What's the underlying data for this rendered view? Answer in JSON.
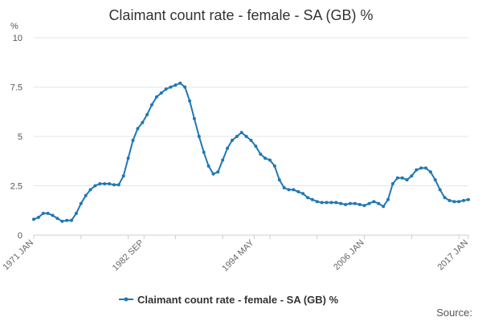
{
  "chart_data": {
    "type": "line",
    "title": "Claimant count rate - female - SA (GB) %",
    "unit_label": "%",
    "ylim": [
      0,
      10
    ],
    "y_ticks": [
      "0",
      "2.5",
      "5",
      "7.5",
      "10"
    ],
    "x_ticks": [
      "1971 JAN",
      "1982 SEP",
      "1994 MAY",
      "2006 JAN",
      "2017 JAN"
    ],
    "grid": true,
    "legend_position": "bottom",
    "source_label": "Source:",
    "colors": {
      "series": "#1f77b4",
      "grid": "#e6e6e6",
      "axis": "#cccccc"
    },
    "series": [
      {
        "name": "Claimant count rate - female - SA (GB) %",
        "points": [
          [
            "1971-01",
            0.8
          ],
          [
            "1971-07",
            0.9
          ],
          [
            "1972-01",
            1.1
          ],
          [
            "1972-07",
            1.1
          ],
          [
            "1973-01",
            1.0
          ],
          [
            "1973-07",
            0.85
          ],
          [
            "1974-01",
            0.7
          ],
          [
            "1974-07",
            0.75
          ],
          [
            "1975-01",
            0.75
          ],
          [
            "1975-07",
            1.1
          ],
          [
            "1976-01",
            1.6
          ],
          [
            "1976-07",
            2.0
          ],
          [
            "1977-01",
            2.3
          ],
          [
            "1977-07",
            2.5
          ],
          [
            "1978-01",
            2.6
          ],
          [
            "1978-07",
            2.6
          ],
          [
            "1979-01",
            2.6
          ],
          [
            "1979-07",
            2.55
          ],
          [
            "1980-01",
            2.55
          ],
          [
            "1980-07",
            3.0
          ],
          [
            "1981-01",
            3.9
          ],
          [
            "1981-07",
            4.8
          ],
          [
            "1982-01",
            5.4
          ],
          [
            "1982-07",
            5.7
          ],
          [
            "1983-01",
            6.1
          ],
          [
            "1983-07",
            6.6
          ],
          [
            "1984-01",
            7.0
          ],
          [
            "1984-07",
            7.2
          ],
          [
            "1985-01",
            7.4
          ],
          [
            "1985-07",
            7.5
          ],
          [
            "1986-01",
            7.6
          ],
          [
            "1986-07",
            7.7
          ],
          [
            "1987-01",
            7.5
          ],
          [
            "1987-07",
            6.8
          ],
          [
            "1988-01",
            5.9
          ],
          [
            "1988-07",
            5.0
          ],
          [
            "1989-01",
            4.2
          ],
          [
            "1989-07",
            3.5
          ],
          [
            "1990-01",
            3.1
          ],
          [
            "1990-07",
            3.2
          ],
          [
            "1991-01",
            3.8
          ],
          [
            "1991-07",
            4.4
          ],
          [
            "1992-01",
            4.8
          ],
          [
            "1992-07",
            5.0
          ],
          [
            "1993-01",
            5.2
          ],
          [
            "1993-07",
            5.0
          ],
          [
            "1994-01",
            4.8
          ],
          [
            "1994-07",
            4.5
          ],
          [
            "1995-01",
            4.1
          ],
          [
            "1995-07",
            3.9
          ],
          [
            "1996-01",
            3.8
          ],
          [
            "1996-07",
            3.5
          ],
          [
            "1997-01",
            2.8
          ],
          [
            "1997-07",
            2.4
          ],
          [
            "1998-01",
            2.3
          ],
          [
            "1998-07",
            2.3
          ],
          [
            "1999-01",
            2.2
          ],
          [
            "1999-07",
            2.1
          ],
          [
            "2000-01",
            1.9
          ],
          [
            "2000-07",
            1.8
          ],
          [
            "2001-01",
            1.7
          ],
          [
            "2001-07",
            1.65
          ],
          [
            "2002-01",
            1.65
          ],
          [
            "2002-07",
            1.65
          ],
          [
            "2003-01",
            1.65
          ],
          [
            "2003-07",
            1.6
          ],
          [
            "2004-01",
            1.55
          ],
          [
            "2004-07",
            1.6
          ],
          [
            "2005-01",
            1.6
          ],
          [
            "2005-07",
            1.55
          ],
          [
            "2006-01",
            1.5
          ],
          [
            "2006-07",
            1.6
          ],
          [
            "2007-01",
            1.7
          ],
          [
            "2007-07",
            1.6
          ],
          [
            "2008-01",
            1.45
          ],
          [
            "2008-07",
            1.8
          ],
          [
            "2009-01",
            2.6
          ],
          [
            "2009-07",
            2.9
          ],
          [
            "2010-01",
            2.9
          ],
          [
            "2010-07",
            2.8
          ],
          [
            "2011-01",
            3.0
          ],
          [
            "2011-07",
            3.3
          ],
          [
            "2012-01",
            3.4
          ],
          [
            "2012-07",
            3.4
          ],
          [
            "2013-01",
            3.2
          ],
          [
            "2013-07",
            2.8
          ],
          [
            "2014-01",
            2.3
          ],
          [
            "2014-07",
            1.9
          ],
          [
            "2015-01",
            1.75
          ],
          [
            "2015-07",
            1.7
          ],
          [
            "2016-01",
            1.7
          ],
          [
            "2016-07",
            1.75
          ],
          [
            "2017-01",
            1.8
          ]
        ]
      }
    ]
  }
}
